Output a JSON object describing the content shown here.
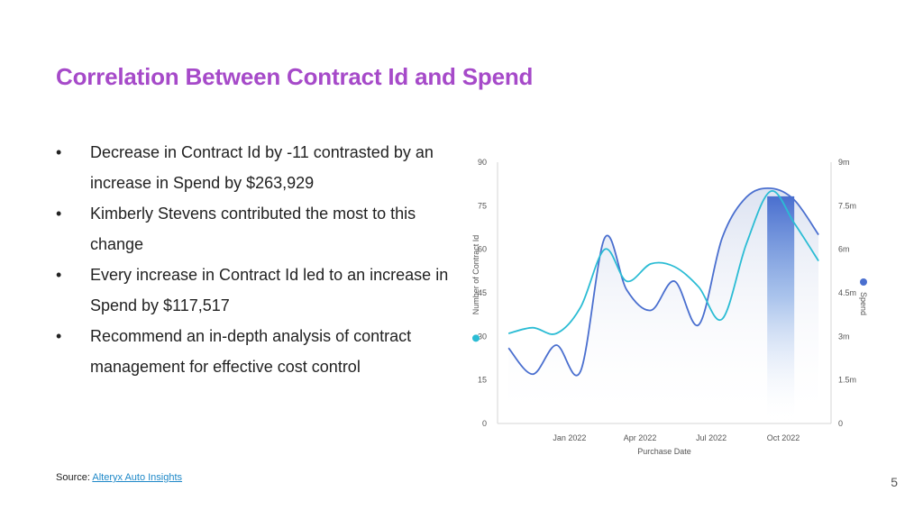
{
  "slide": {
    "title": "Correlation Between Contract Id and Spend",
    "title_color": "#a64ac9",
    "bullet_glyph": "•",
    "bullets": [
      "Decrease in Contract Id by -11 contrasted by an increase in Spend by $263,929",
      "Kimberly Stevens contributed the most to this change",
      "Every increase in Contract Id led to an increase in Spend by $117,517",
      "Recommend an in-depth analysis of contract management for effective cost control"
    ],
    "source_label": "Source:",
    "source_link": "Alteryx Auto Insights",
    "link_color": "#1e88c8",
    "page_number": "5"
  },
  "chart_data": {
    "type": "line",
    "x": [
      "2021-10-15",
      "2021-11-15",
      "2021-12-15",
      "2022-01-15",
      "2022-02-15",
      "2022-03-15",
      "2022-04-15",
      "2022-05-15",
      "2022-06-15",
      "2022-07-15",
      "2022-08-15",
      "2022-09-15",
      "2022-10-15",
      "2022-11-15"
    ],
    "x_ticks": [
      "Jan 2022",
      "Apr 2022",
      "Jul 2022",
      "Oct 2022"
    ],
    "x_tick_dates": [
      "2022-01-01",
      "2022-04-01",
      "2022-07-01",
      "2022-10-01"
    ],
    "xlabel": "Purchase Date",
    "left_axis": {
      "label": "Number of Contract Id",
      "ylim": [
        0,
        90
      ],
      "ticks": [
        "0",
        "15",
        "30",
        "45",
        "60",
        "75",
        "90"
      ]
    },
    "right_axis": {
      "label": "Spend",
      "ylim": [
        0,
        9000000
      ],
      "ticks": [
        "0",
        "1.5m",
        "3m",
        "4.5m",
        "6m",
        "7.5m",
        "9m"
      ]
    },
    "series": [
      {
        "name": "Number of Contract Id",
        "axis": "left",
        "color": "#2bbcd4",
        "values": [
          31,
          33,
          31,
          40,
          60,
          49,
          55,
          54,
          47,
          36,
          62,
          80,
          69,
          56
        ]
      },
      {
        "name": "Spend",
        "axis": "right",
        "color": "#4a6fcf",
        "values": [
          2600000,
          1700000,
          2700000,
          1800000,
          6400000,
          4600000,
          3900000,
          4900000,
          3400000,
          6400000,
          7800000,
          8100000,
          7700000,
          6500000
        ]
      }
    ],
    "highlight_x": "2022-10-15",
    "grid": false
  }
}
